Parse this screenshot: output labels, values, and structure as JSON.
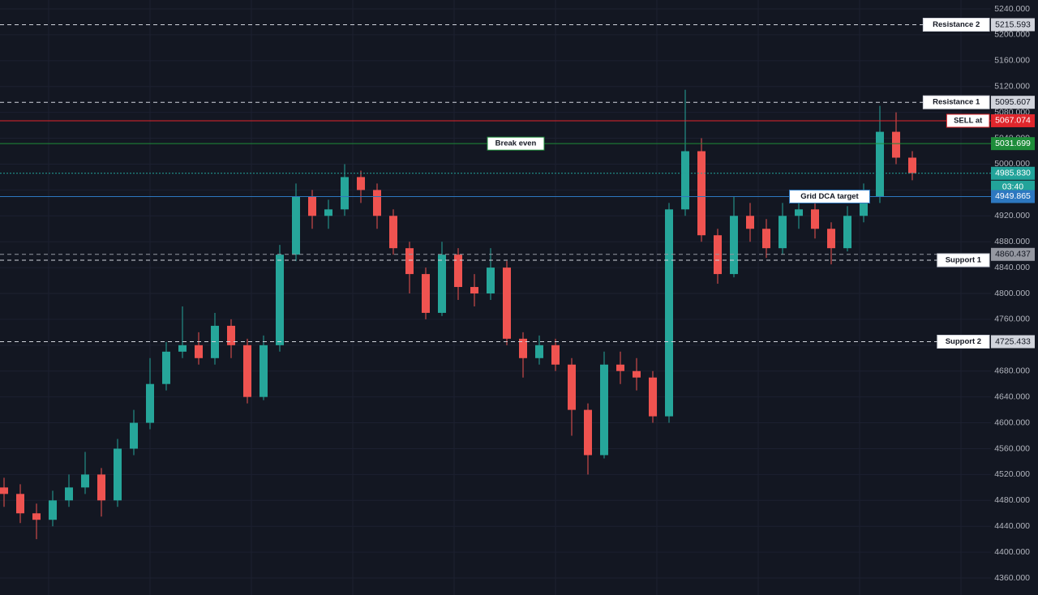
{
  "chart_data": {
    "type": "candlestick",
    "open": [
      4500,
      4490,
      4460,
      4450,
      4480,
      4500,
      4520,
      4480,
      4560,
      4600,
      4660,
      4710,
      4720,
      4700,
      4750,
      4720,
      4640,
      4720,
      4860,
      4950,
      4920,
      4930,
      4980,
      4960,
      4920,
      4870,
      4830,
      4770,
      4860,
      4810,
      4800,
      4840,
      4730,
      4700,
      4720,
      4690,
      4620,
      4550,
      4690,
      4680,
      4670,
      4610,
      4930,
      5020,
      4890,
      4830,
      4920,
      4900,
      4870,
      4920,
      4930,
      4900,
      4870,
      4920,
      4950,
      5050,
      5010
    ],
    "high": [
      4515,
      4505,
      4475,
      4495,
      4520,
      4555,
      4530,
      4575,
      4620,
      4700,
      4725,
      4780,
      4740,
      4770,
      4760,
      4730,
      4735,
      4875,
      4970,
      4960,
      4945,
      5000,
      4990,
      4970,
      4930,
      4880,
      4840,
      4880,
      4870,
      4830,
      4870,
      4850,
      4740,
      4735,
      4730,
      4700,
      4630,
      4710,
      4710,
      4700,
      4680,
      4940,
      5115,
      5040,
      4900,
      4950,
      4940,
      4915,
      4940,
      4950,
      4945,
      4910,
      4935,
      4970,
      5090,
      5080,
      5020
    ],
    "low": [
      4470,
      4445,
      4420,
      4440,
      4470,
      4490,
      4455,
      4470,
      4550,
      4590,
      4650,
      4700,
      4690,
      4690,
      4700,
      4630,
      4635,
      4710,
      4850,
      4900,
      4900,
      4920,
      4940,
      4900,
      4860,
      4800,
      4760,
      4765,
      4790,
      4780,
      4790,
      4720,
      4670,
      4690,
      4680,
      4580,
      4520,
      4545,
      4660,
      4650,
      4600,
      4600,
      4920,
      4880,
      4815,
      4825,
      4880,
      4855,
      4860,
      4900,
      4885,
      4845,
      4865,
      4910,
      4940,
      5000,
      4975
    ],
    "close": [
      4490,
      4460,
      4450,
      4480,
      4500,
      4520,
      4480,
      4560,
      4600,
      4660,
      4710,
      4720,
      4700,
      4750,
      4720,
      4640,
      4720,
      4860,
      4950,
      4920,
      4930,
      4980,
      4960,
      4920,
      4870,
      4830,
      4770,
      4860,
      4810,
      4800,
      4840,
      4730,
      4700,
      4720,
      4690,
      4620,
      4550,
      4690,
      4680,
      4670,
      4610,
      4930,
      5020,
      4890,
      4830,
      4920,
      4900,
      4870,
      4920,
      4930,
      4900,
      4870,
      4920,
      4950,
      5050,
      5010,
      4986
    ],
    "up_color": "#26a69a",
    "down_color": "#ef5350",
    "ylim": [
      4333.7,
      5253.8
    ],
    "yticks": [
      {
        "value": 4360,
        "label": "4360.000"
      },
      {
        "value": 4400,
        "label": "4400.000"
      },
      {
        "value": 4440,
        "label": "4440.000"
      },
      {
        "value": 4480,
        "label": "4480.000"
      },
      {
        "value": 4520,
        "label": "4520.000"
      },
      {
        "value": 4560,
        "label": "4560.000"
      },
      {
        "value": 4600,
        "label": "4600.000"
      },
      {
        "value": 4640,
        "label": "4640.000"
      },
      {
        "value": 4680,
        "label": "4680.000"
      },
      {
        "value": 4720,
        "label": "4720.000"
      },
      {
        "value": 4760,
        "label": "4760.000"
      },
      {
        "value": 4800,
        "label": "4800.000"
      },
      {
        "value": 4840,
        "label": "4840.000"
      },
      {
        "value": 4880,
        "label": "4880.000"
      },
      {
        "value": 4920,
        "label": "4920.000"
      },
      {
        "value": 4960,
        "label": "4960.000"
      },
      {
        "value": 5000,
        "label": "5000.000"
      },
      {
        "value": 5040,
        "label": "5040.000"
      },
      {
        "value": 5080,
        "label": "5080.000"
      },
      {
        "value": 5120,
        "label": "5120.000"
      },
      {
        "value": 5160,
        "label": "5160.000"
      },
      {
        "value": 5200,
        "label": "5200.000"
      },
      {
        "value": 5240,
        "label": "5240.000"
      }
    ],
    "grid": true,
    "levels": [
      {
        "name": "Resistance 2",
        "value": 5215.593,
        "value_label": "5215.593",
        "color": "#d1d4dc",
        "style": "dashed"
      },
      {
        "name": "Resistance 1",
        "value": 5095.607,
        "value_label": "5095.607",
        "color": "#d1d4dc",
        "style": "dashed"
      },
      {
        "name": "SELL at",
        "value": 5067.074,
        "value_label": "5067.074",
        "color": "#e0262c",
        "style": "solid"
      },
      {
        "name": "Break even",
        "value": 5031.699,
        "value_label": "5031.699",
        "color": "#1e8c3a",
        "style": "solid"
      },
      {
        "value": 4985.83,
        "value_label": "4985.830",
        "color": "#22a39a",
        "style": "dotted"
      },
      {
        "name": "Grid DCA target",
        "value": 4949.865,
        "value_label": "4949.865",
        "color": "#2d78c0",
        "style": "solid"
      },
      {
        "value": 4860.437,
        "value_label": "4860.437",
        "color": "#9598a1",
        "style": "dashed"
      },
      {
        "name": "Support 1",
        "value": 4851.4,
        "color": "#d1d4dc",
        "style": "dashed"
      },
      {
        "name": "Support 2",
        "value": 4725.433,
        "value_label": "4725.433",
        "color": "#d1d4dc",
        "style": "dashed"
      }
    ],
    "countdown": "03:40"
  }
}
